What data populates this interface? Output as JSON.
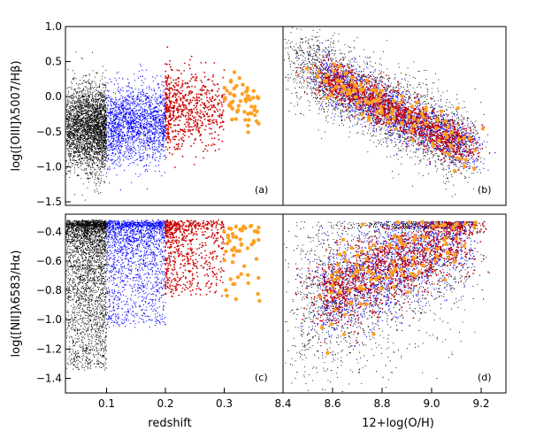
{
  "chart_data": [
    {
      "id": "a",
      "type": "scatter",
      "panel_label": "(a)",
      "xlabel": "",
      "ylabel": "log([OIII]λ5007/Hβ)",
      "xlim": [
        0.03,
        0.4
      ],
      "ylim": [
        -1.55,
        1.0
      ],
      "xticks": [],
      "yticks": [
        -1.5,
        -1.0,
        -0.5,
        0.0,
        0.5,
        1.0
      ],
      "ytick_labels": [
        "−1.5",
        "−1.0",
        "−0.5",
        "0.0",
        "0.5",
        "1.0"
      ],
      "series": [
        {
          "name": "black",
          "color": "#000000",
          "x_range": [
            0.03,
            0.1
          ],
          "y_center": -0.45,
          "y_spread": 0.55,
          "density": "very high"
        },
        {
          "name": "blue",
          "color": "#0000ff",
          "x_range": [
            0.1,
            0.2
          ],
          "y_center": -0.4,
          "y_spread": 0.5,
          "density": "high"
        },
        {
          "name": "red",
          "color": "#cc0000",
          "x_range": [
            0.2,
            0.3
          ],
          "y_center": -0.2,
          "y_spread": 0.5,
          "density": "medium"
        },
        {
          "name": "orange",
          "color": "#ffa020",
          "x_range": [
            0.3,
            0.36
          ],
          "y_center": -0.05,
          "y_spread": 0.35,
          "density": "low"
        }
      ]
    },
    {
      "id": "b",
      "type": "scatter",
      "panel_label": "(b)",
      "xlabel": "",
      "ylabel": "",
      "xlim": [
        8.4,
        9.3
      ],
      "ylim": [
        -1.55,
        1.0
      ],
      "xticks": [],
      "yticks": [],
      "trend": {
        "x_from": 8.45,
        "y_from": 0.5,
        "x_to": 9.15,
        "y_to": -0.75
      },
      "series": [
        {
          "name": "black",
          "color": "#000000"
        },
        {
          "name": "blue",
          "color": "#0000ff"
        },
        {
          "name": "red",
          "color": "#cc0000"
        },
        {
          "name": "orange",
          "color": "#ffa020"
        }
      ]
    },
    {
      "id": "c",
      "type": "scatter",
      "panel_label": "(c)",
      "xlabel": "redshift",
      "ylabel": "log([NII]λ6583/Hα)",
      "xlim": [
        0.03,
        0.4
      ],
      "ylim": [
        -1.5,
        -0.28
      ],
      "xticks": [
        0.1,
        0.2,
        0.3
      ],
      "xtick_labels": [
        "0.1",
        "0.2",
        "0.3"
      ],
      "yticks": [
        -1.4,
        -1.2,
        -1.0,
        -0.8,
        -0.6,
        -0.4
      ],
      "ytick_labels": [
        "−1.4",
        "−1.2",
        "−1.0",
        "−0.8",
        "−0.6",
        "−0.4"
      ],
      "series": [
        {
          "name": "black",
          "color": "#000000",
          "x_range": [
            0.03,
            0.1
          ],
          "y_top": -0.32
        },
        {
          "name": "blue",
          "color": "#0000ff",
          "x_range": [
            0.1,
            0.2
          ],
          "y_top": -0.32
        },
        {
          "name": "red",
          "color": "#cc0000",
          "x_range": [
            0.2,
            0.3
          ],
          "y_top": -0.32
        },
        {
          "name": "orange",
          "color": "#ffa020",
          "x_range": [
            0.3,
            0.36
          ],
          "y_top": -0.35
        }
      ]
    },
    {
      "id": "d",
      "type": "scatter",
      "panel_label": "(d)",
      "xlabel": "12+log(O/H)",
      "ylabel": "",
      "xlim": [
        8.4,
        9.3
      ],
      "ylim": [
        -1.5,
        -0.28
      ],
      "xticks": [
        8.4,
        8.6,
        8.8,
        9.0,
        9.2
      ],
      "xtick_labels": [
        "8.4",
        "8.6",
        "8.8",
        "9.0",
        "9.2"
      ],
      "yticks": [],
      "trend": {
        "x_from": 8.45,
        "y_from": -0.95,
        "x_to": 9.15,
        "y_to": -0.38
      },
      "series": [
        {
          "name": "black",
          "color": "#000000"
        },
        {
          "name": "blue",
          "color": "#0000ff"
        },
        {
          "name": "red",
          "color": "#cc0000"
        },
        {
          "name": "orange",
          "color": "#ffa020"
        }
      ]
    }
  ]
}
